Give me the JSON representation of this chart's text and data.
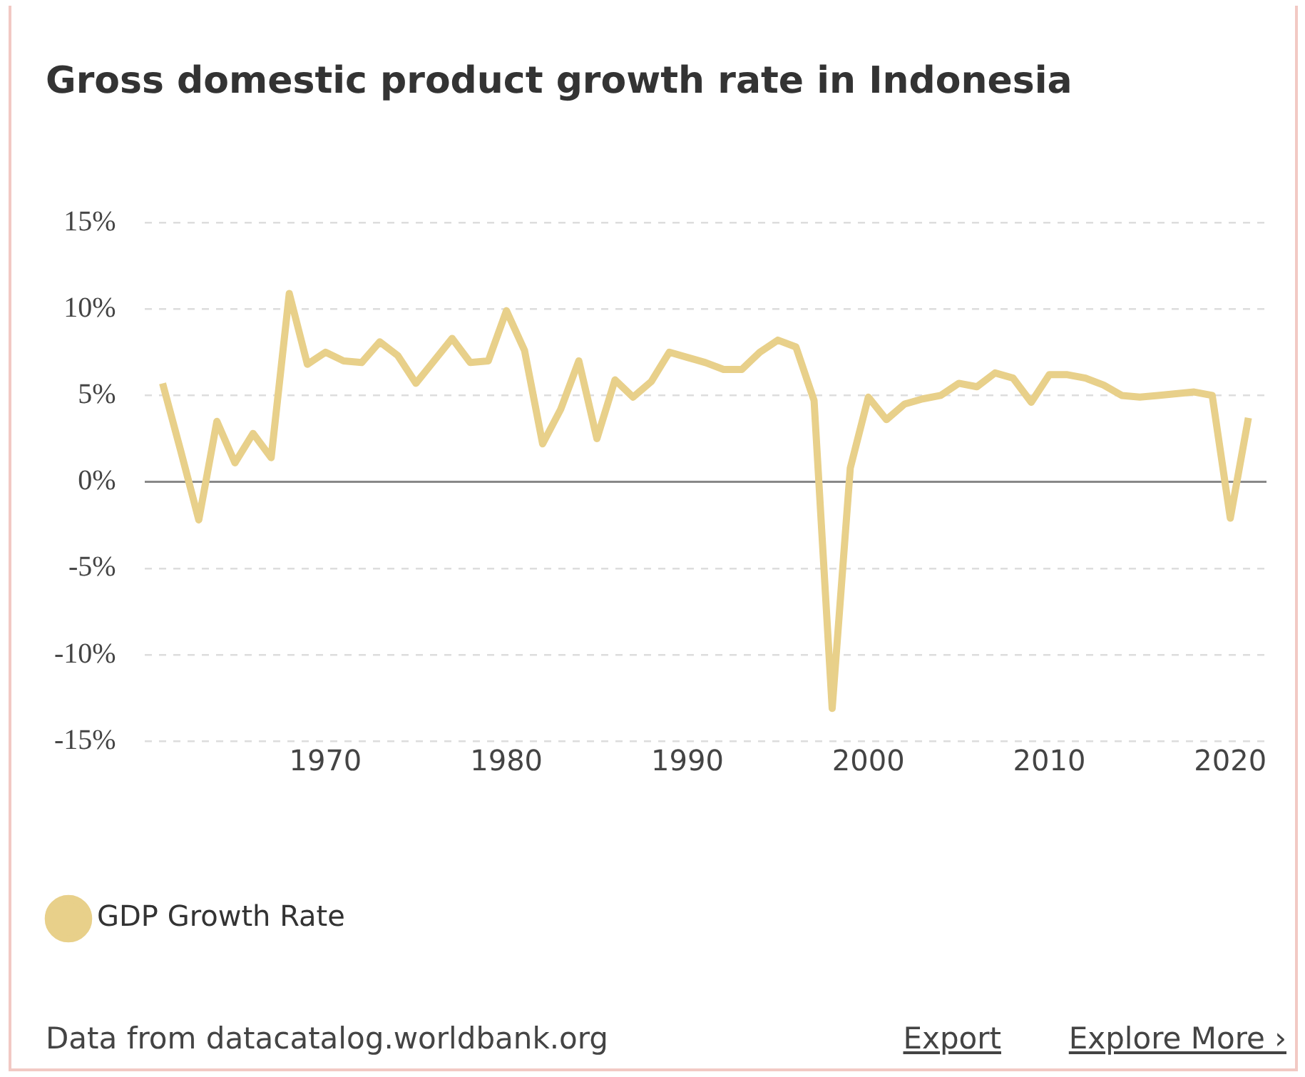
{
  "chart_data": {
    "type": "line",
    "title": "Gross domestic product growth rate in Indonesia",
    "x": [
      1961,
      1962,
      1963,
      1964,
      1965,
      1966,
      1967,
      1968,
      1969,
      1970,
      1971,
      1972,
      1973,
      1974,
      1975,
      1976,
      1977,
      1978,
      1979,
      1980,
      1981,
      1982,
      1983,
      1984,
      1985,
      1986,
      1987,
      1988,
      1989,
      1990,
      1991,
      1992,
      1993,
      1994,
      1995,
      1996,
      1997,
      1998,
      1999,
      2000,
      2001,
      2002,
      2003,
      2004,
      2005,
      2006,
      2007,
      2008,
      2009,
      2010,
      2011,
      2012,
      2013,
      2014,
      2015,
      2016,
      2017,
      2018,
      2019,
      2020,
      2021
    ],
    "series": [
      {
        "name": "GDP Growth Rate",
        "color": "#e8d08a",
        "values": [
          5.7,
          1.8,
          -2.2,
          3.5,
          1.1,
          2.8,
          1.4,
          10.9,
          6.8,
          7.5,
          7.0,
          6.9,
          8.1,
          7.3,
          5.7,
          7.0,
          8.3,
          6.9,
          7.0,
          9.9,
          7.6,
          2.2,
          4.2,
          7.0,
          2.5,
          5.9,
          4.9,
          5.8,
          7.5,
          7.2,
          6.9,
          6.5,
          6.5,
          7.5,
          8.2,
          7.8,
          4.7,
          -13.1,
          0.8,
          4.9,
          3.6,
          4.5,
          4.8,
          5.0,
          5.7,
          5.5,
          6.3,
          6.0,
          4.6,
          6.2,
          6.2,
          6.0,
          5.6,
          5.0,
          4.9,
          5.0,
          5.1,
          5.2,
          5.0,
          -2.1,
          3.7
        ]
      }
    ],
    "xlim": [
      1960,
      2022
    ],
    "xticks": [
      1970,
      1980,
      1990,
      2000,
      2010,
      2020
    ],
    "ylim": [
      -15,
      15
    ],
    "yticks": [
      {
        "value": -15,
        "label": "-15%"
      },
      {
        "value": -10,
        "label": "-10%"
      },
      {
        "value": -5,
        "label": "-5%"
      },
      {
        "value": 0,
        "label": "0%"
      },
      {
        "value": 5,
        "label": "5%"
      },
      {
        "value": 10,
        "label": "10%"
      },
      {
        "value": 15,
        "label": "15%"
      }
    ],
    "grid": "y",
    "legend": "bottom left",
    "marker": "none",
    "line_style": "solid",
    "annotations": [
      "Data from datacatalog.worldbank.org",
      "Export",
      "Explore More ›"
    ]
  }
}
